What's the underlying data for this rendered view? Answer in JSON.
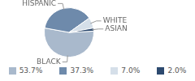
{
  "chart_data": {
    "type": "pie",
    "categories": [
      "BLACK",
      "HISPANIC",
      "WHITE",
      "ASIAN"
    ],
    "values": [
      53.7,
      37.3,
      7.0,
      2.0
    ],
    "value_labels": [
      "53.7%",
      "37.3%",
      "7.0%",
      "2.0%"
    ],
    "colors": [
      "#a9b9cc",
      "#6e8aab",
      "#d5dfe9",
      "#2d4a6f"
    ],
    "legend": "bottom"
  }
}
